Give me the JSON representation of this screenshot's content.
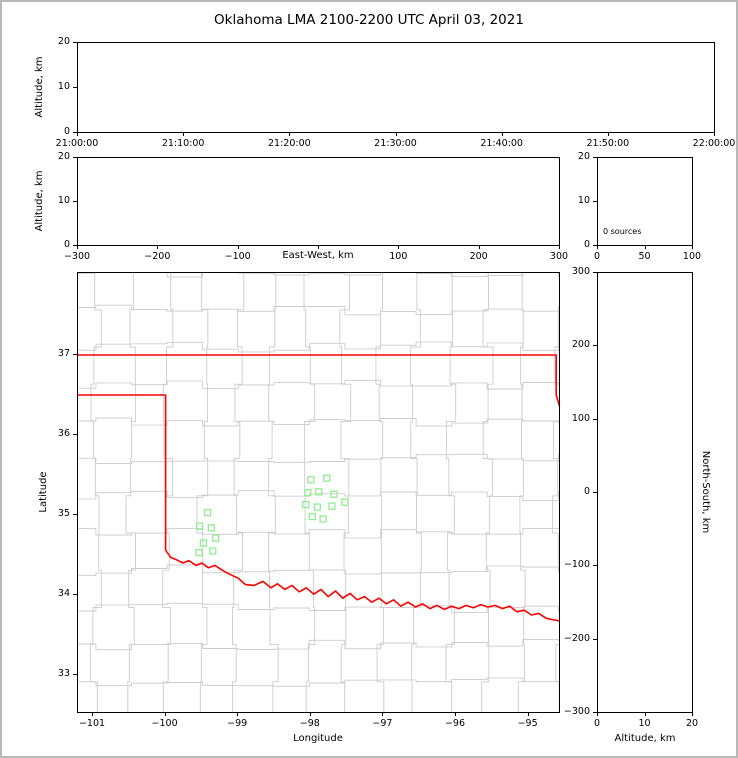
{
  "title": "Oklahoma LMA 2100-2200 UTC April 03, 2021",
  "colors": {
    "state_border": "#ff0000",
    "county_lines": "#cccccc",
    "station_marker": "#90ee90",
    "frame": "#b9b9b9"
  },
  "chart_data": [
    {
      "id": "time_height",
      "type": "scatter",
      "xlabel": "",
      "ylabel": "Altitude, km",
      "ylim": [
        0,
        20
      ],
      "yticks": [
        "0",
        "10",
        "20"
      ],
      "xticks": [
        "21:00:00",
        "21:10:00",
        "21:20:00",
        "21:30:00",
        "21:40:00",
        "21:50:00",
        "22:00:00"
      ],
      "points": []
    },
    {
      "id": "east_west_height",
      "type": "scatter",
      "xlabel": "East-West, km",
      "ylabel": "Altitude, km",
      "xlim": [
        -300,
        300
      ],
      "ylim": [
        0,
        20
      ],
      "xticks": [
        "−300",
        "−200",
        "−100",
        "",
        "100",
        "200",
        "300"
      ],
      "yticks": [
        "0",
        "10",
        "20"
      ],
      "points": []
    },
    {
      "id": "source_count",
      "type": "bar",
      "annotation": "0 sources",
      "xlim": [
        0,
        100
      ],
      "ylim": [
        0,
        20
      ],
      "xticks": [
        "0",
        "50",
        "100"
      ],
      "yticks": [
        "0",
        "10",
        "20"
      ],
      "values": []
    },
    {
      "id": "plan_view",
      "type": "scatter",
      "xlabel": "Longitude",
      "ylabel": "Latitude",
      "xlim": [
        -101.21,
        -94.56
      ],
      "ylim": [
        32.53,
        38.03
      ],
      "xticks": [
        "−101",
        "−100",
        "−99",
        "−98",
        "−97",
        "−96",
        "−95"
      ],
      "xtick_values": [
        -101,
        -100,
        -99,
        -98,
        -97,
        -96,
        -95
      ],
      "yticks": [
        "33",
        "34",
        "35",
        "36",
        "37"
      ],
      "ytick_values": [
        33,
        34,
        35,
        36,
        37
      ],
      "stations": [
        [
          -98.0,
          35.44
        ],
        [
          -97.78,
          35.46
        ],
        [
          -98.04,
          35.28
        ],
        [
          -97.89,
          35.29
        ],
        [
          -97.68,
          35.26
        ],
        [
          -98.07,
          35.13
        ],
        [
          -97.91,
          35.1
        ],
        [
          -97.71,
          35.11
        ],
        [
          -97.53,
          35.16
        ],
        [
          -97.98,
          34.98
        ],
        [
          -97.83,
          34.95
        ],
        [
          -99.42,
          35.03
        ],
        [
          -99.53,
          34.86
        ],
        [
          -99.37,
          34.84
        ],
        [
          -99.31,
          34.71
        ],
        [
          -99.48,
          34.65
        ],
        [
          -99.35,
          34.55
        ],
        [
          -99.54,
          34.53
        ]
      ],
      "state_border_paths": [
        [
          [
            -101.21,
            37.0
          ],
          [
            -94.62,
            37.0
          ],
          [
            -94.62,
            36.5
          ],
          [
            -94.44,
            35.95
          ]
        ],
        [
          [
            -101.21,
            36.5
          ],
          [
            -100.0,
            36.5
          ],
          [
            -100.0,
            34.56
          ],
          [
            -99.93,
            34.47
          ],
          [
            -99.85,
            34.44
          ],
          [
            -99.76,
            34.4
          ],
          [
            -99.68,
            34.43
          ],
          [
            -99.58,
            34.37
          ],
          [
            -99.5,
            34.4
          ],
          [
            -99.41,
            34.34
          ],
          [
            -99.32,
            34.37
          ],
          [
            -99.22,
            34.31
          ],
          [
            -99.12,
            34.26
          ],
          [
            -99.0,
            34.21
          ],
          [
            -98.9,
            34.13
          ],
          [
            -98.78,
            34.12
          ],
          [
            -98.66,
            34.17
          ],
          [
            -98.55,
            34.09
          ],
          [
            -98.46,
            34.14
          ],
          [
            -98.36,
            34.07
          ],
          [
            -98.26,
            34.12
          ],
          [
            -98.16,
            34.04
          ],
          [
            -98.06,
            34.09
          ],
          [
            -97.96,
            34.01
          ],
          [
            -97.86,
            34.07
          ],
          [
            -97.76,
            33.98
          ],
          [
            -97.66,
            34.05
          ],
          [
            -97.56,
            33.96
          ],
          [
            -97.46,
            34.02
          ],
          [
            -97.36,
            33.94
          ],
          [
            -97.26,
            33.98
          ],
          [
            -97.16,
            33.91
          ],
          [
            -97.06,
            33.96
          ],
          [
            -96.96,
            33.89
          ],
          [
            -96.86,
            33.94
          ],
          [
            -96.76,
            33.86
          ],
          [
            -96.66,
            33.91
          ],
          [
            -96.56,
            33.85
          ],
          [
            -96.46,
            33.89
          ],
          [
            -96.36,
            33.83
          ],
          [
            -96.26,
            33.87
          ],
          [
            -96.16,
            33.82
          ],
          [
            -96.06,
            33.86
          ],
          [
            -95.96,
            33.83
          ],
          [
            -95.86,
            33.87
          ],
          [
            -95.76,
            33.84
          ],
          [
            -95.66,
            33.88
          ],
          [
            -95.56,
            33.85
          ],
          [
            -95.46,
            33.87
          ],
          [
            -95.36,
            33.83
          ],
          [
            -95.26,
            33.86
          ],
          [
            -95.16,
            33.79
          ],
          [
            -95.06,
            33.81
          ],
          [
            -94.96,
            33.75
          ],
          [
            -94.86,
            33.77
          ],
          [
            -94.76,
            33.71
          ],
          [
            -94.66,
            33.69
          ],
          [
            -94.54,
            33.67
          ]
        ]
      ]
    },
    {
      "id": "north_south_height",
      "type": "scatter",
      "xlabel": "Altitude, km",
      "ylabel": "North-South, km",
      "xlim": [
        0,
        20
      ],
      "ylim": [
        -300,
        300
      ],
      "xticks": [
        "0",
        "10",
        "20"
      ],
      "yticks": [
        "300",
        "200",
        "100",
        "0",
        "−100",
        "−200",
        "−300"
      ],
      "points": []
    }
  ]
}
